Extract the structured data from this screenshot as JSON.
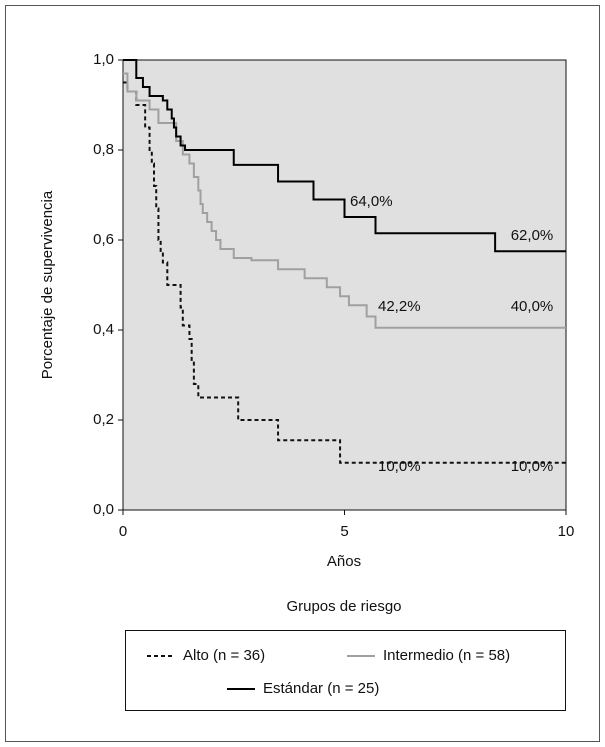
{
  "chart_data": {
    "type": "step",
    "ylabel": "Porcentaje de supervivencia",
    "xlabel": "Años",
    "xlim": [
      0,
      10
    ],
    "xticks": [
      0,
      5,
      10
    ],
    "ylim": [
      0,
      1
    ],
    "yticks": [
      {
        "value": 0,
        "label": "0,0"
      },
      {
        "value": 0.2,
        "label": "0,2"
      },
      {
        "value": 0.4,
        "label": "0,4"
      },
      {
        "value": 0.6,
        "label": "0,6"
      },
      {
        "value": 0.8,
        "label": "0,8"
      },
      {
        "value": 1,
        "label": "1,0"
      }
    ],
    "legend_title": "Grupos de riesgo",
    "series": [
      {
        "name": "Alto (n = 36)",
        "color": "#111111",
        "dash": true,
        "x": [
          0,
          0.1,
          0.3,
          0.5,
          0.6,
          0.65,
          0.7,
          0.75,
          0.8,
          0.85,
          0.9,
          1.0,
          1.3,
          1.35,
          1.5,
          1.55,
          1.6,
          1.7,
          2.6,
          3.5,
          4.9,
          10
        ],
        "values": [
          0.95,
          0.93,
          0.9,
          0.85,
          0.8,
          0.77,
          0.72,
          0.67,
          0.6,
          0.57,
          0.55,
          0.5,
          0.45,
          0.41,
          0.38,
          0.33,
          0.28,
          0.25,
          0.2,
          0.155,
          0.105,
          0.105
        ]
      },
      {
        "name": "Intermedio (n = 58)",
        "color": "#a0a0a0",
        "dash": false,
        "x": [
          0,
          0.1,
          0.3,
          0.6,
          0.8,
          1.2,
          1.35,
          1.5,
          1.6,
          1.7,
          1.75,
          1.8,
          1.9,
          2.0,
          2.1,
          2.2,
          2.5,
          2.9,
          3.5,
          4.1,
          4.6,
          4.9,
          5.1,
          5.5,
          5.7,
          10
        ],
        "values": [
          0.97,
          0.93,
          0.91,
          0.89,
          0.86,
          0.82,
          0.79,
          0.77,
          0.74,
          0.71,
          0.68,
          0.66,
          0.64,
          0.62,
          0.6,
          0.58,
          0.56,
          0.555,
          0.535,
          0.515,
          0.495,
          0.475,
          0.455,
          0.43,
          0.405,
          0.405
        ]
      },
      {
        "name": "Estándar (n = 25)",
        "color": "#000000",
        "dash": false,
        "x": [
          0,
          0.3,
          0.45,
          0.6,
          0.9,
          1.0,
          1.1,
          1.15,
          1.2,
          1.3,
          1.4,
          2.5,
          3.5,
          4.3,
          5.0,
          5.7,
          8.4,
          10
        ],
        "values": [
          1.0,
          0.96,
          0.94,
          0.92,
          0.91,
          0.89,
          0.87,
          0.85,
          0.83,
          0.81,
          0.8,
          0.767,
          0.73,
          0.69,
          0.651,
          0.615,
          0.575,
          0.575
        ]
      }
    ],
    "annotations": [
      "64,0%",
      "62,0%",
      "42,2%",
      "40,0%",
      "10,0%",
      "10,0%"
    ]
  }
}
